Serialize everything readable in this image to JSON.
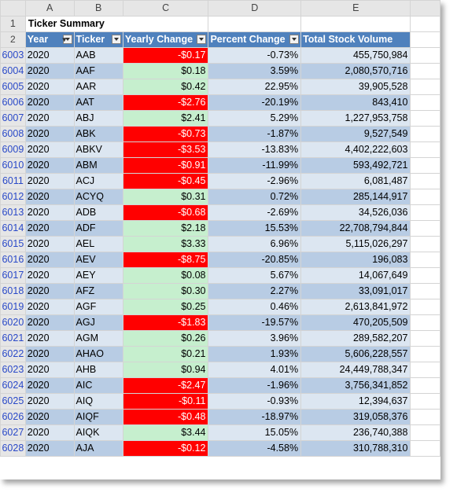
{
  "columns": [
    "A",
    "B",
    "C",
    "D",
    "E"
  ],
  "title_row": {
    "row_number": "1",
    "title": "Ticker Summary"
  },
  "header_row": {
    "row_number": "2",
    "headers": [
      "Year",
      "Ticker",
      "Yearly Change",
      "Percent Change",
      "Total Stock Volume"
    ]
  },
  "rows": [
    {
      "n": "6003",
      "year": "2020",
      "ticker": "AAB",
      "change": "-$0.17",
      "percent": "-0.73%",
      "volume": "455,750,984",
      "sign": "neg"
    },
    {
      "n": "6004",
      "year": "2020",
      "ticker": "AAF",
      "change": "$0.18",
      "percent": "3.59%",
      "volume": "2,080,570,716",
      "sign": "pos"
    },
    {
      "n": "6005",
      "year": "2020",
      "ticker": "AAR",
      "change": "$0.42",
      "percent": "22.95%",
      "volume": "39,905,528",
      "sign": "pos"
    },
    {
      "n": "6006",
      "year": "2020",
      "ticker": "AAT",
      "change": "-$2.76",
      "percent": "-20.19%",
      "volume": "843,410",
      "sign": "neg"
    },
    {
      "n": "6007",
      "year": "2020",
      "ticker": "ABJ",
      "change": "$2.41",
      "percent": "5.29%",
      "volume": "1,227,953,758",
      "sign": "pos"
    },
    {
      "n": "6008",
      "year": "2020",
      "ticker": "ABK",
      "change": "-$0.73",
      "percent": "-1.87%",
      "volume": "9,527,549",
      "sign": "neg"
    },
    {
      "n": "6009",
      "year": "2020",
      "ticker": "ABKV",
      "change": "-$3.53",
      "percent": "-13.83%",
      "volume": "4,402,222,603",
      "sign": "neg"
    },
    {
      "n": "6010",
      "year": "2020",
      "ticker": "ABM",
      "change": "-$0.91",
      "percent": "-11.99%",
      "volume": "593,492,721",
      "sign": "neg"
    },
    {
      "n": "6011",
      "year": "2020",
      "ticker": "ACJ",
      "change": "-$0.45",
      "percent": "-2.96%",
      "volume": "6,081,487",
      "sign": "neg"
    },
    {
      "n": "6012",
      "year": "2020",
      "ticker": "ACYQ",
      "change": "$0.31",
      "percent": "0.72%",
      "volume": "285,144,917",
      "sign": "pos"
    },
    {
      "n": "6013",
      "year": "2020",
      "ticker": "ADB",
      "change": "-$0.68",
      "percent": "-2.69%",
      "volume": "34,526,036",
      "sign": "neg"
    },
    {
      "n": "6014",
      "year": "2020",
      "ticker": "ADF",
      "change": "$2.18",
      "percent": "15.53%",
      "volume": "22,708,794,844",
      "sign": "pos"
    },
    {
      "n": "6015",
      "year": "2020",
      "ticker": "AEL",
      "change": "$3.33",
      "percent": "6.96%",
      "volume": "5,115,026,297",
      "sign": "pos"
    },
    {
      "n": "6016",
      "year": "2020",
      "ticker": "AEV",
      "change": "-$8.75",
      "percent": "-20.85%",
      "volume": "196,083",
      "sign": "neg"
    },
    {
      "n": "6017",
      "year": "2020",
      "ticker": "AEY",
      "change": "$0.08",
      "percent": "5.67%",
      "volume": "14,067,649",
      "sign": "pos"
    },
    {
      "n": "6018",
      "year": "2020",
      "ticker": "AFZ",
      "change": "$0.30",
      "percent": "2.27%",
      "volume": "33,091,017",
      "sign": "pos"
    },
    {
      "n": "6019",
      "year": "2020",
      "ticker": "AGF",
      "change": "$0.25",
      "percent": "0.46%",
      "volume": "2,613,841,972",
      "sign": "pos"
    },
    {
      "n": "6020",
      "year": "2020",
      "ticker": "AGJ",
      "change": "-$1.83",
      "percent": "-19.57%",
      "volume": "470,205,509",
      "sign": "neg"
    },
    {
      "n": "6021",
      "year": "2020",
      "ticker": "AGM",
      "change": "$0.26",
      "percent": "3.96%",
      "volume": "289,582,207",
      "sign": "pos"
    },
    {
      "n": "6022",
      "year": "2020",
      "ticker": "AHAO",
      "change": "$0.21",
      "percent": "1.93%",
      "volume": "5,606,228,557",
      "sign": "pos"
    },
    {
      "n": "6023",
      "year": "2020",
      "ticker": "AHB",
      "change": "$0.94",
      "percent": "4.01%",
      "volume": "24,449,788,347",
      "sign": "pos"
    },
    {
      "n": "6024",
      "year": "2020",
      "ticker": "AIC",
      "change": "-$2.47",
      "percent": "-1.96%",
      "volume": "3,756,341,852",
      "sign": "neg"
    },
    {
      "n": "6025",
      "year": "2020",
      "ticker": "AIQ",
      "change": "-$0.11",
      "percent": "-0.93%",
      "volume": "12,394,637",
      "sign": "neg"
    },
    {
      "n": "6026",
      "year": "2020",
      "ticker": "AIQF",
      "change": "-$0.48",
      "percent": "-18.97%",
      "volume": "319,058,376",
      "sign": "neg"
    },
    {
      "n": "6027",
      "year": "2020",
      "ticker": "AIQK",
      "change": "$3.44",
      "percent": "15.05%",
      "volume": "236,740,388",
      "sign": "pos"
    },
    {
      "n": "6028",
      "year": "2020",
      "ticker": "AJA",
      "change": "-$0.12",
      "percent": "-4.58%",
      "volume": "310,788,310",
      "sign": "neg"
    }
  ],
  "colors": {
    "header_blue": "#4f81bd",
    "band_light": "#dce6f1",
    "band_dark": "#b8cce4",
    "positive_fill": "#c6efce",
    "negative_fill": "#ff0000"
  }
}
